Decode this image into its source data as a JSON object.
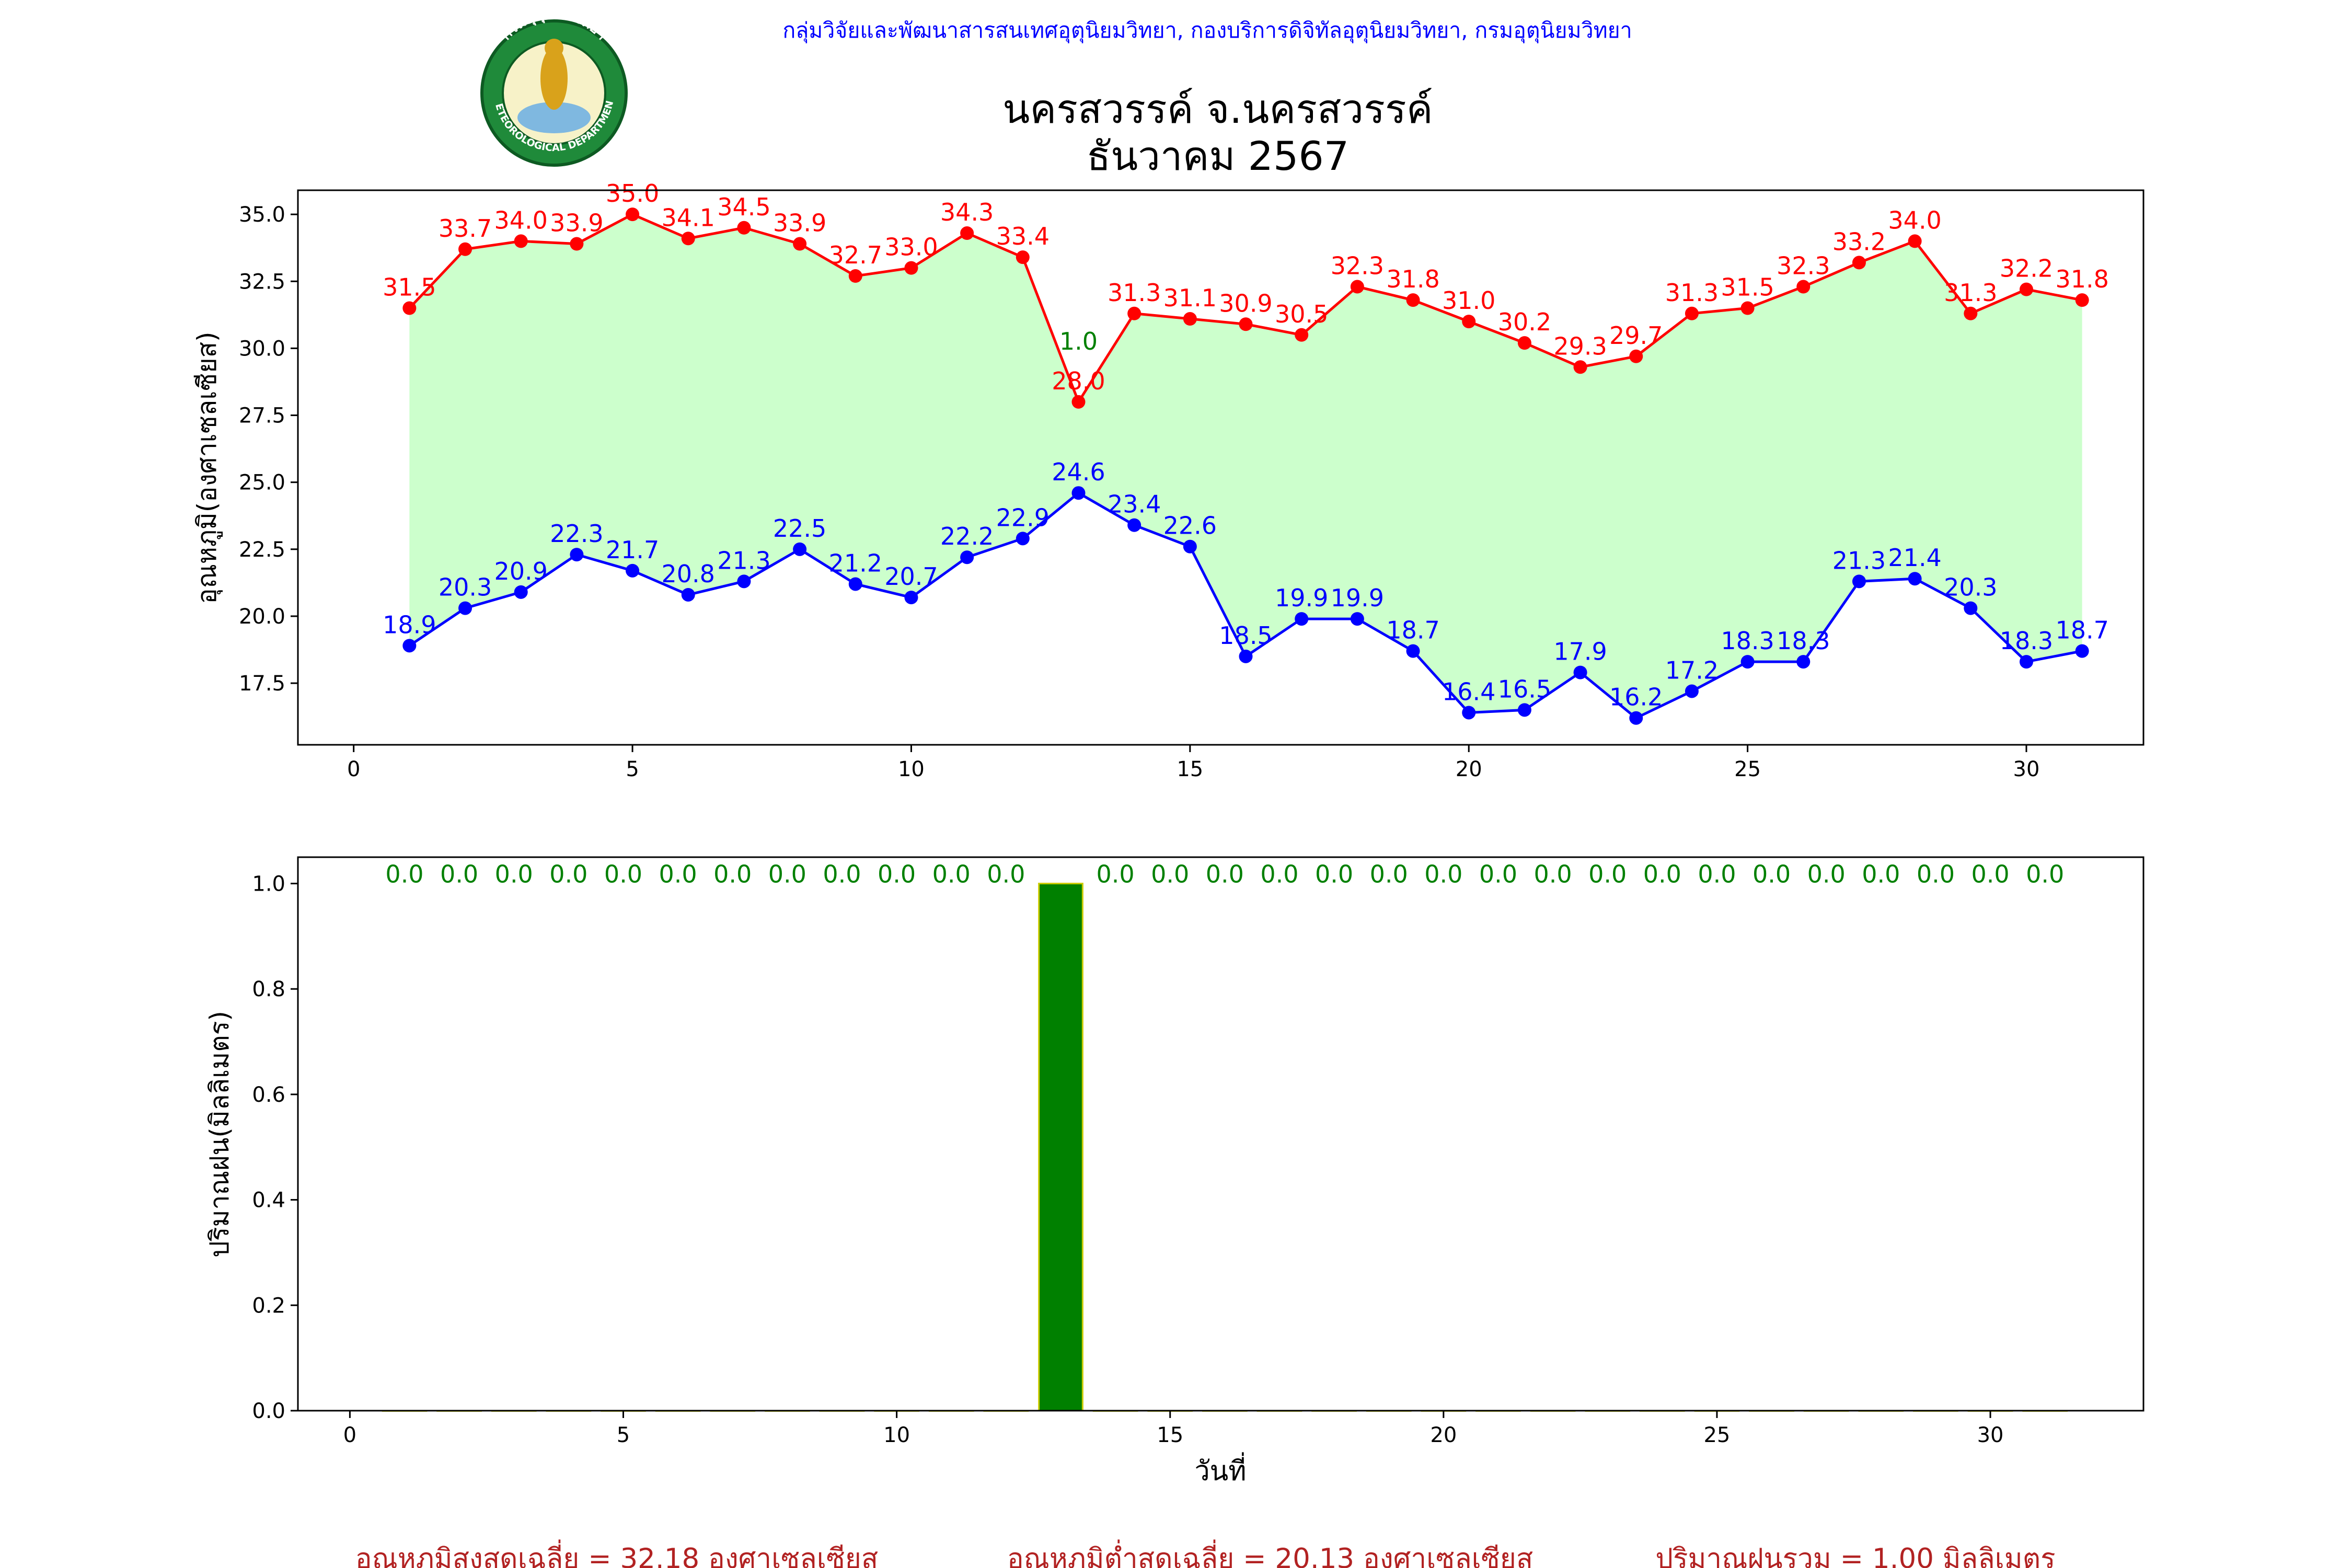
{
  "header": {
    "org_line": "กลุ่มวิจัยและพัฒนาสารสนเทศอุตุนิยมวิทยา, กองบริการดิจิทัลอุตุนิยมวิทยา, กรมอุตุนิยมวิทยา",
    "title_line1": "นครสวรรค์  จ.นครสวรรค์",
    "title_line2": "ธันวาคม 2567",
    "logo_top_text": "กรมอุตุนิยมวิทยา",
    "logo_bottom_text": "METEOROLOGICAL DEPARTMENT"
  },
  "colors": {
    "max_line": "#ff0000",
    "min_line": "#0000ff",
    "fill": "#ccffcc",
    "rain_bar": "#008000",
    "rain_edge": "#cccc00",
    "rain_label": "#008000",
    "org_text": "#0000ff",
    "summary_text": "#b22222"
  },
  "chart_data": [
    {
      "type": "line",
      "ylabel": "อุณหภูมิ(องศาเซลเซียส)",
      "xlabel": "",
      "x": [
        1,
        2,
        3,
        4,
        5,
        6,
        7,
        8,
        9,
        10,
        11,
        12,
        13,
        14,
        15,
        16,
        17,
        18,
        19,
        20,
        21,
        22,
        23,
        24,
        25,
        26,
        27,
        28,
        29,
        30,
        31
      ],
      "series": [
        {
          "name": "max",
          "color": "#ff0000",
          "values": [
            31.5,
            33.7,
            34.0,
            33.9,
            35.0,
            34.1,
            34.5,
            33.9,
            32.7,
            33.0,
            34.3,
            33.4,
            28.0,
            31.3,
            31.1,
            30.9,
            30.5,
            32.3,
            31.8,
            31.0,
            30.2,
            29.3,
            29.7,
            31.3,
            31.5,
            32.3,
            33.2,
            34.0,
            31.3,
            32.2,
            31.8
          ]
        },
        {
          "name": "min",
          "color": "#0000ff",
          "values": [
            18.9,
            20.3,
            20.9,
            22.3,
            21.7,
            20.8,
            21.3,
            22.5,
            21.2,
            20.7,
            22.2,
            22.9,
            24.6,
            23.4,
            22.6,
            18.5,
            19.9,
            19.9,
            18.7,
            16.4,
            16.5,
            17.9,
            16.2,
            17.2,
            18.3,
            18.3,
            21.3,
            21.4,
            20.3,
            18.3,
            18.7
          ]
        }
      ],
      "annotation": {
        "x": 13,
        "text": "1.0"
      },
      "xticks": [
        0,
        5,
        10,
        15,
        20,
        25,
        30
      ],
      "yticks": [
        "17.5",
        "20.0",
        "22.5",
        "25.0",
        "27.5",
        "30.0",
        "32.5",
        "35.0"
      ],
      "xlim": [
        -1,
        32.1
      ],
      "ylim": [
        15.2,
        35.9
      ],
      "grid": false
    },
    {
      "type": "bar",
      "ylabel": "ปริมาณฝน(มิลลิเมตร)",
      "xlabel": "วันที่",
      "x": [
        1,
        2,
        3,
        4,
        5,
        6,
        7,
        8,
        9,
        10,
        11,
        12,
        13,
        14,
        15,
        16,
        17,
        18,
        19,
        20,
        21,
        22,
        23,
        24,
        25,
        26,
        27,
        28,
        29,
        30,
        31
      ],
      "values": [
        0,
        0,
        0,
        0,
        0,
        0,
        0,
        0,
        0,
        0,
        0,
        0,
        1.0,
        0,
        0,
        0,
        0,
        0,
        0,
        0,
        0,
        0,
        0,
        0,
        0,
        0,
        0,
        0,
        0,
        0,
        0
      ],
      "bar_labels": [
        "0.0",
        "0.0",
        "0.0",
        "0.0",
        "0.0",
        "0.0",
        "0.0",
        "0.0",
        "0.0",
        "0.0",
        "0.0",
        "0.0",
        "",
        "0.0",
        "0.0",
        "0.0",
        "0.0",
        "0.0",
        "0.0",
        "0.0",
        "0.0",
        "0.0",
        "0.0",
        "0.0",
        "0.0",
        "0.0",
        "0.0",
        "0.0",
        "0.0",
        "0.0",
        "0.0"
      ],
      "xticks": [
        0,
        5,
        10,
        15,
        20,
        25,
        30
      ],
      "yticks": [
        "0.0",
        "0.2",
        "0.4",
        "0.6",
        "0.8",
        "1.0"
      ],
      "xlim": [
        -0.95,
        32.8
      ],
      "ylim": [
        0,
        1.05
      ],
      "grid": false
    }
  ],
  "summary": {
    "avg_max": "อุณหภูมิสูงสุดเฉลี่ย = 32.18 องศาเซลเซียส",
    "avg_min": "อุณหภูมิต่ำสุดเฉลี่ย = 20.13 องศาเซลเซียส",
    "total_rain": "ปริมาณฝนรวม = 1.00 มิลลิเมตร"
  }
}
